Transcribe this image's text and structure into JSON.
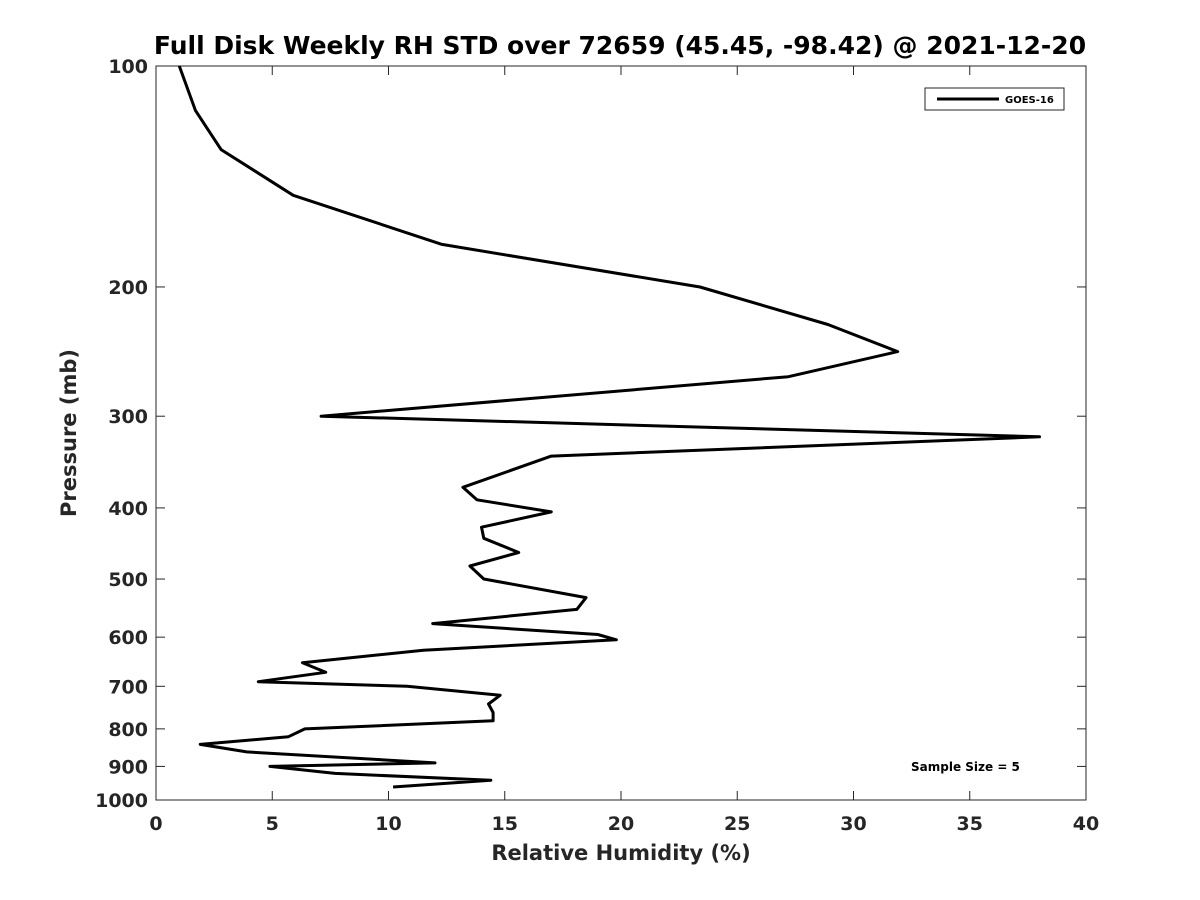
{
  "chart_data": {
    "type": "line",
    "title": "Full Disk Weekly RH STD over 72659 (45.45, -98.42) @ 2021-12-20",
    "xlabel": "Relative Humidity (%)",
    "ylabel": "Pressure (mb)",
    "xlim": [
      0,
      40
    ],
    "ylim": [
      100,
      1000
    ],
    "yscale": "log",
    "yreversed": true,
    "grid": false,
    "xticks": [
      0,
      5,
      10,
      15,
      20,
      25,
      30,
      35,
      40
    ],
    "xtick_labels": [
      "0",
      "5",
      "10",
      "15",
      "20",
      "25",
      "30",
      "35",
      "40"
    ],
    "yticks": [
      100,
      200,
      300,
      400,
      500,
      600,
      700,
      800,
      900,
      1000
    ],
    "ytick_labels": [
      "100",
      "200",
      "300",
      "400",
      "500",
      "600",
      "700",
      "800",
      "900",
      "1000"
    ],
    "legend": {
      "position": "top-right",
      "entries": [
        "GOES-16"
      ]
    },
    "annotation": "Sample Size = 5",
    "series": [
      {
        "name": "GOES-16",
        "color": "#000000",
        "x": [
          1.0,
          1.7,
          2.8,
          5.9,
          12.3,
          23.4,
          28.9,
          31.9,
          27.2,
          7.1,
          38.0,
          17.0,
          13.2,
          13.8,
          17.0,
          14.0,
          14.1,
          15.6,
          13.5,
          14.1,
          18.5,
          18.1,
          11.9,
          19.0,
          19.8,
          11.5,
          6.3,
          7.3,
          4.4,
          10.8,
          14.8,
          14.3,
          14.5,
          14.5,
          6.4,
          5.7,
          1.9,
          3.9,
          12.0,
          4.9,
          7.7,
          14.4,
          10.2
        ],
        "y": [
          100,
          115,
          130,
          150,
          175,
          200,
          225,
          245,
          265,
          300,
          320,
          340,
          375,
          390,
          405,
          425,
          440,
          460,
          480,
          500,
          530,
          550,
          575,
          595,
          605,
          625,
          650,
          670,
          690,
          700,
          720,
          740,
          760,
          780,
          800,
          820,
          840,
          860,
          890,
          900,
          920,
          940,
          960
        ]
      }
    ]
  }
}
